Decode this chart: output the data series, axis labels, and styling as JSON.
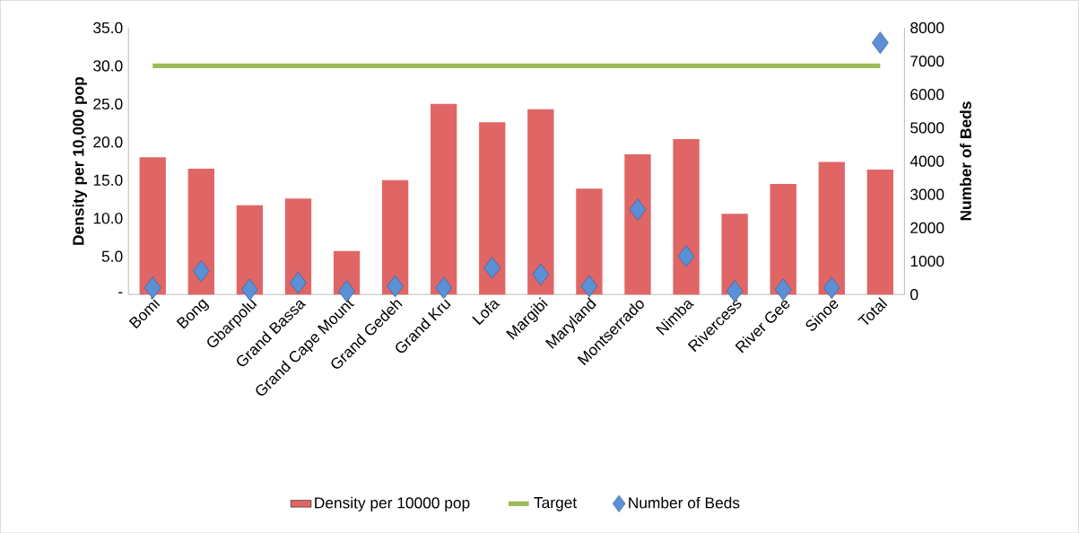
{
  "chart_data": {
    "type": "bar",
    "ylabel": "Density per 10,000 pop",
    "y2label": "Number of Beds",
    "categories": [
      "Bomi",
      "Bong",
      "Gbarpolu",
      "Grand Bassa",
      "Grand Cape Mount",
      "Grand Gedeh",
      "Grand Kru",
      "Lofa",
      "Margibi",
      "Maryland",
      "Montserrado",
      "Nimba",
      "Rivercess",
      "River Gee",
      "Sinoe",
      "Total"
    ],
    "series": [
      {
        "name": "Density per 10000 pop",
        "color": "#e06666",
        "values": [
          18.0,
          16.5,
          11.7,
          12.6,
          5.7,
          15.0,
          25.0,
          22.6,
          24.3,
          13.9,
          18.4,
          20.4,
          10.6,
          14.5,
          17.4,
          16.4
        ]
      },
      {
        "name": "Target",
        "type": "line",
        "color": "#9bbb59",
        "values": [
          30,
          30,
          30,
          30,
          30,
          30,
          30,
          30,
          30,
          30,
          30,
          30,
          30,
          30,
          30,
          30
        ]
      },
      {
        "name": "Number of Beds",
        "type": "scatter",
        "axis": "y2",
        "marker": "diamond",
        "color": "#5b8fd6",
        "values": [
          200,
          700,
          150,
          350,
          100,
          250,
          200,
          800,
          600,
          250,
          2550,
          1150,
          100,
          150,
          200,
          7550
        ]
      }
    ],
    "ylim": [
      0,
      35
    ],
    "yticks": [
      {
        "value": 0,
        "label": "-"
      },
      {
        "value": 5,
        "label": "5.0"
      },
      {
        "value": 10,
        "label": "10.0"
      },
      {
        "value": 15,
        "label": "15.0"
      },
      {
        "value": 20,
        "label": "20.0"
      },
      {
        "value": 25,
        "label": "25.0"
      },
      {
        "value": 30,
        "label": "30.0"
      },
      {
        "value": 35,
        "label": "35.0"
      }
    ],
    "y2lim": [
      0,
      8000
    ],
    "y2ticks": [
      0,
      1000,
      2000,
      3000,
      4000,
      5000,
      6000,
      7000,
      8000
    ],
    "grid": false,
    "legend": "bottom"
  }
}
